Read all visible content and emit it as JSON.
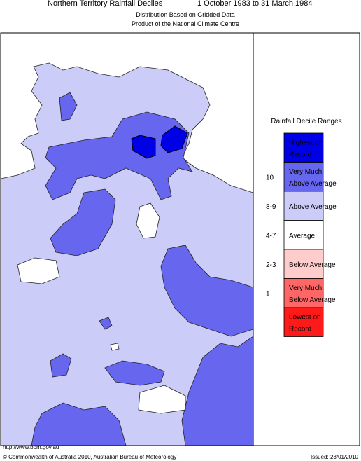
{
  "header": {
    "title": "Northern Territory Rainfall Deciles",
    "date_range": "1 October 1983 to 31 March 1984",
    "subtitle": [
      "Distribution Based on Gridded Data",
      "Product of the National Climate Centre"
    ]
  },
  "legend": {
    "title": "Rainfall Decile Ranges",
    "items": [
      {
        "label": [
          "Highest on",
          "Record"
        ],
        "color": "#0000e6"
      },
      {
        "label": [
          "Very Much",
          "Above Average"
        ],
        "range": "10",
        "color": "#6666ee"
      },
      {
        "label": [
          "Above Average"
        ],
        "range": "8-9",
        "color": "#ccccf8"
      },
      {
        "label": [
          "Average"
        ],
        "range": "4-7",
        "color": "#ffffff"
      },
      {
        "label": [
          "Below Average"
        ],
        "range": "2-3",
        "color": "#ffcccc"
      },
      {
        "label": [
          "Very Much",
          "Below Average"
        ],
        "range": "1",
        "color": "#ff6666"
      },
      {
        "label": [
          "Lowest on",
          "Record"
        ],
        "color": "#ff1a1a"
      }
    ]
  },
  "footer": {
    "url": "http://www.bom.gov.au",
    "copyright": "© Commonwealth of Australia 2010, Australian Bureau of Meteorology",
    "issued": "Issued: 23/01/2010"
  }
}
